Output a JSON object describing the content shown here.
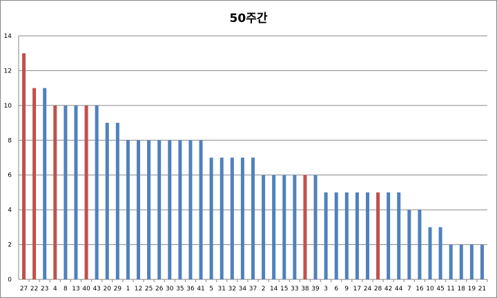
{
  "chart_data": {
    "type": "bar",
    "title": "50주간",
    "xlabel": "",
    "ylabel": "",
    "ylim": [
      0,
      14
    ],
    "yticks": [
      0,
      2,
      4,
      6,
      8,
      10,
      12,
      14
    ],
    "grid": true,
    "legend": "none",
    "categories": [
      "27",
      "22",
      "23",
      "4",
      "8",
      "13",
      "40",
      "43",
      "20",
      "29",
      "1",
      "12",
      "25",
      "26",
      "30",
      "35",
      "36",
      "41",
      "5",
      "31",
      "32",
      "34",
      "37",
      "2",
      "14",
      "15",
      "33",
      "38",
      "39",
      "3",
      "6",
      "9",
      "17",
      "24",
      "28",
      "42",
      "44",
      "7",
      "16",
      "10",
      "45",
      "11",
      "18",
      "19",
      "21"
    ],
    "values": [
      13,
      11,
      11,
      10,
      10,
      10,
      10,
      10,
      9,
      9,
      8,
      8,
      8,
      8,
      8,
      8,
      8,
      8,
      7,
      7,
      7,
      7,
      7,
      6,
      6,
      6,
      6,
      6,
      6,
      5,
      5,
      5,
      5,
      5,
      5,
      5,
      5,
      4,
      4,
      3,
      3,
      2,
      2,
      2,
      2
    ],
    "highlighted": [
      "27",
      "22",
      "4",
      "40",
      "38",
      "28"
    ],
    "colors": {
      "default": "#4f81bd",
      "highlight": "#c0504d",
      "grid": "#868686"
    }
  }
}
